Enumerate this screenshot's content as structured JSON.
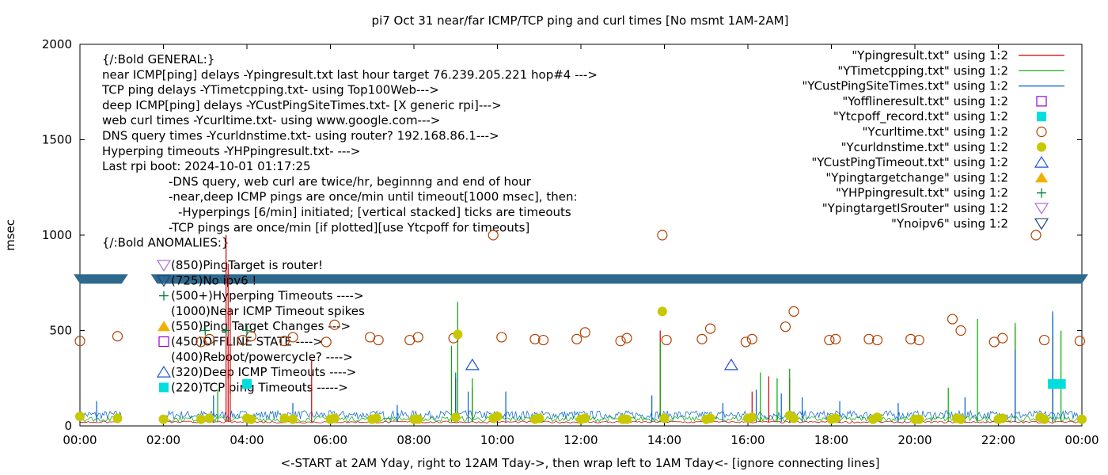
{
  "chart_data": {
    "type": "line",
    "title": "pi7 Oct 31  near/far ICMP/TCP ping and curl times [No msmt 1AM-2AM]",
    "xlabel": "<-START at 2AM Yday, right to 12AM Tday->, then wrap left to 1AM Tday<- [ignore connecting lines]",
    "ylabel": "msec",
    "xlim": [
      0,
      24
    ],
    "ylim": [
      0,
      2000
    ],
    "xticks": [
      "00:00",
      "02:00",
      "04:00",
      "06:00",
      "08:00",
      "10:00",
      "12:00",
      "14:00",
      "16:00",
      "18:00",
      "20:00",
      "22:00",
      "00:00"
    ],
    "yticks": [
      "0",
      "500",
      "1000",
      "1500",
      "2000"
    ],
    "legend_position": "top-right",
    "legend": [
      {
        "label": "\"Ypingresult.txt\" using 1:2",
        "kind": "line",
        "color": "#cc0000"
      },
      {
        "label": "\"YTimetcpping.txt\" using 1:2",
        "kind": "line",
        "color": "#00aa00"
      },
      {
        "label": "\"YCustPingSiteTimes.txt\" using 1:2",
        "kind": "line",
        "color": "#0060cc"
      },
      {
        "label": "\"Yofflineresult.txt\" using 1:2",
        "kind": "open-square",
        "color": "#9400d3"
      },
      {
        "label": "\"Ytcpoff_record.txt\" using 1:2",
        "kind": "filled-square",
        "color": "#00dddd"
      },
      {
        "label": "\"Ycurltime.txt\" using 1:2",
        "kind": "open-circle",
        "color": "#b04000"
      },
      {
        "label": "\"Ycurldnstime.txt\" using 1:2",
        "kind": "filled-circle",
        "color": "#c8c800"
      },
      {
        "label": "\"YCustPingTimeout.txt\" using 1:2",
        "kind": "open-triangle",
        "color": "#2050d0"
      },
      {
        "label": "\"Ypingtargetchange\" using 1:2",
        "kind": "filled-triangle",
        "color": "#f0b000"
      },
      {
        "label": "\"YHPpingresult.txt\" using 1:2",
        "kind": "plus",
        "color": "#008040"
      },
      {
        "label": "\"YpingtargetISrouter\" using 1:2",
        "kind": "open-triangle-down",
        "color": "#b070e0"
      },
      {
        "label": "\"Ynoipv6\" using 1:2",
        "kind": "open-triangle-down",
        "color": "#204080"
      }
    ],
    "notes": [
      "{/:Bold GENERAL:}",
      "near ICMP[ping] delays -Ypingresult.txt last hour target 76.239.205.221 hop#4 --->",
      "TCP ping delays -YTimetcpping.txt- using Top100Web--->",
      "deep ICMP[ping] delays -YCustPingSiteTimes.txt- [X generic rpi]--->",
      "web curl times -Ycurltime.txt- using www.google.com--->",
      "DNS query times -Ycurldnstime.txt- using router? 192.168.86.1--->",
      "Hyperping timeouts -YHPpingresult.txt- --->",
      "Last rpi boot: 2024-10-01 01:17:25",
      "-DNS query, web curl are twice/hr, beginnng and end of hour",
      "-near,deep ICMP pings are once/min until timeout[1000 msec], then:",
      "-Hyperpings [6/min] initiated; [vertical stacked] ticks are timeouts",
      "-TCP pings are once/min [if plotted][use Ytcpoff for timeouts]",
      "{/:Bold ANOMALIES:}"
    ],
    "anomaly_keys": [
      {
        "label": "(850)PingTarget is router!",
        "marker": "open-triangle-down",
        "color": "#b070e0"
      },
      {
        "label": "(725)No ipv6 !",
        "marker": "open-triangle-down",
        "color": "#204080"
      },
      {
        "label": "(500+)Hyperping Timeouts ---->",
        "marker": "plus",
        "color": "#008040"
      },
      {
        "label": "(1000)Near ICMP Timeout spikes",
        "marker": "",
        "color": "#cc0000"
      },
      {
        "label": "(550)Ping Target Changes --->",
        "marker": "filled-triangle",
        "color": "#f0b000"
      },
      {
        "label": "(450)OFFLINE STATE ---->",
        "marker": "open-square",
        "color": "#9400d3"
      },
      {
        "label": "(400)Reboot/powercycle? ---->",
        "marker": "",
        "color": "#000000"
      },
      {
        "label": "(320)Deep ICMP Timeouts ---->",
        "marker": "open-triangle",
        "color": "#2050d0"
      },
      {
        "label": "(220)TCP ping Timeouts ----->",
        "marker": "filled-square",
        "color": "#00dddd"
      }
    ],
    "no_ipv6_band": {
      "y": 770,
      "x_ranges": [
        [
          0,
          1.0
        ],
        [
          1.85,
          24
        ]
      ]
    },
    "series": [
      {
        "name": "\"Ycurltime.txt\" using 1:2",
        "marker": "open-circle",
        "color": "#b04000",
        "x": [
          0.0,
          0.9,
          2.9,
          3.1,
          3.9,
          4.1,
          4.9,
          5.1,
          5.9,
          6.1,
          6.95,
          7.15,
          7.9,
          8.1,
          8.95,
          9.9,
          10.1,
          10.9,
          11.1,
          11.9,
          12.1,
          12.95,
          13.1,
          13.95,
          14.05,
          14.9,
          15.1,
          15.95,
          16.1,
          16.9,
          17.1,
          17.95,
          18.1,
          18.9,
          19.1,
          19.9,
          20.1,
          20.9,
          21.1,
          21.9,
          22.1,
          22.9,
          23.1,
          23.95
        ],
        "y": [
          445,
          470,
          440,
          455,
          450,
          470,
          445,
          465,
          440,
          530,
          465,
          450,
          450,
          465,
          460,
          1000,
          465,
          455,
          450,
          455,
          490,
          445,
          460,
          1000,
          450,
          455,
          510,
          440,
          455,
          520,
          600,
          450,
          455,
          455,
          450,
          455,
          450,
          560,
          500,
          440,
          460,
          1000,
          450,
          445
        ]
      },
      {
        "name": "\"Ycurldnstime.txt\" using 1:2",
        "marker": "filled-circle",
        "color": "#c8c800",
        "x": [
          0.0,
          0.9,
          2.0,
          2.9,
          3.1,
          4.0,
          4.1,
          4.9,
          5.1,
          6.0,
          6.1,
          7.0,
          7.1,
          8.0,
          8.1,
          9.0,
          9.05,
          9.9,
          10.0,
          10.9,
          11.0,
          12.0,
          12.1,
          13.0,
          13.1,
          13.95,
          14.0,
          15.0,
          15.1,
          16.0,
          16.1,
          17.0,
          17.1,
          18.0,
          18.1,
          19.0,
          19.1,
          20.0,
          20.1,
          21.0,
          21.1,
          22.0,
          22.1,
          23.0,
          23.1,
          24.0
        ],
        "y": [
          50,
          40,
          35,
          35,
          40,
          40,
          35,
          40,
          35,
          35,
          40,
          35,
          40,
          35,
          35,
          45,
          480,
          40,
          50,
          35,
          40,
          35,
          40,
          35,
          35,
          600,
          40,
          35,
          40,
          40,
          45,
          55,
          40,
          35,
          40,
          35,
          45,
          35,
          35,
          40,
          35,
          35,
          40,
          45,
          35,
          35
        ]
      },
      {
        "name": "\"YCustPingTimeout.txt\" using 1:2",
        "marker": "open-triangle",
        "color": "#2050d0",
        "x": [
          9.4,
          15.6
        ],
        "y": [
          320,
          320
        ]
      },
      {
        "name": "\"Ytcpoff_record.txt\" using 1:2",
        "marker": "filled-square",
        "color": "#00dddd",
        "x": [
          4.0,
          23.3,
          23.4,
          23.5
        ],
        "y": [
          220,
          220,
          220,
          220
        ]
      },
      {
        "name": "\"YHPpingresult.txt\" using 1:2",
        "marker": "plus",
        "color": "#008040",
        "x": [
          3.0,
          3.5,
          4.0
        ],
        "y": [
          500,
          500,
          500
        ]
      }
    ],
    "spikes": [
      {
        "name": "\"Ypingresult.txt\" using 1:2",
        "color": "#cc0000",
        "x": [
          3.5,
          3.55,
          3.6,
          5.55,
          9.0,
          9.4,
          13.9,
          16.1,
          16.5,
          17.0,
          22.4,
          23.3
        ],
        "y": [
          1000,
          850,
          620,
          350,
          250,
          200,
          500,
          180,
          260,
          250,
          520,
          470
        ]
      },
      {
        "name": "\"YTimetcpping.txt\" using 1:2",
        "color": "#00aa00",
        "x": [
          3.3,
          8.9,
          9.05,
          9.4,
          13.9,
          16.3,
          16.7,
          17.0,
          20.8,
          21.5,
          22.4,
          23.3,
          23.5
        ],
        "y": [
          190,
          420,
          650,
          250,
          440,
          280,
          250,
          300,
          200,
          560,
          540,
          580,
          500
        ]
      },
      {
        "name": "\"YCustPingSiteTimes.txt\" using 1:2",
        "color": "#0060cc",
        "x": [
          0.4,
          3.2,
          5.1,
          7.6,
          9.0,
          9.3,
          10.2,
          13.7,
          15.4,
          16.2,
          16.8,
          17.3,
          18.2,
          19.6,
          21.2,
          22.4,
          23.3
        ],
        "y": [
          130,
          160,
          120,
          110,
          280,
          180,
          180,
          160,
          120,
          190,
          170,
          150,
          130,
          120,
          150,
          400,
          600
        ]
      }
    ]
  }
}
